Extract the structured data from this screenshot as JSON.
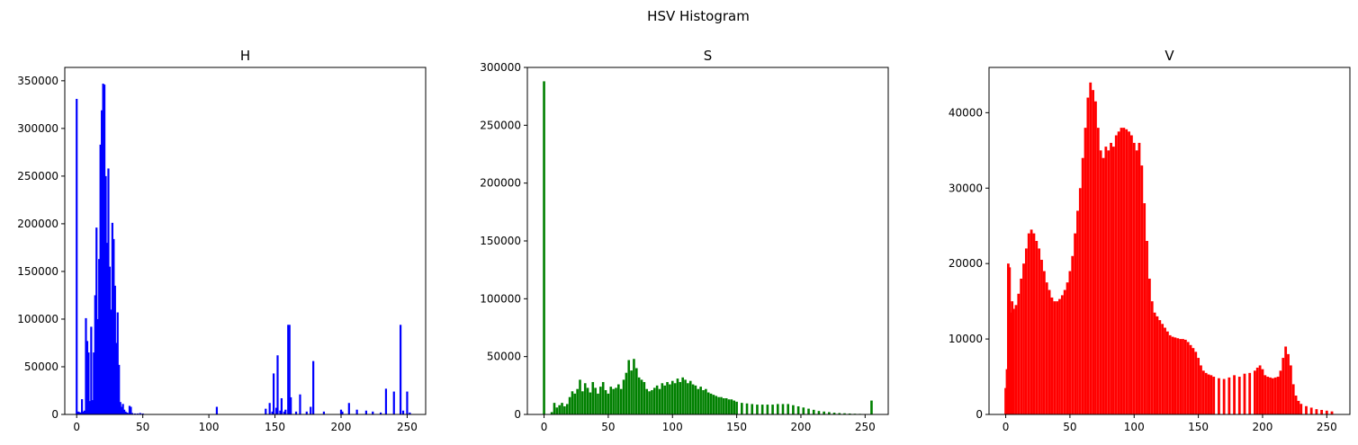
{
  "figure": {
    "suptitle": "HSV Histogram"
  },
  "chart_data": [
    {
      "type": "bar",
      "title": "H",
      "color": "#0000ff",
      "xlim": [
        -9,
        264
      ],
      "ylim": [
        0,
        364000
      ],
      "xticks": [
        0,
        50,
        100,
        150,
        200,
        250
      ],
      "yticks": [
        0,
        50000,
        100000,
        150000,
        200000,
        250000,
        300000,
        350000
      ],
      "points": [
        [
          0,
          331000
        ],
        [
          1,
          3000
        ],
        [
          2,
          2500
        ],
        [
          3,
          2000
        ],
        [
          4,
          16000
        ],
        [
          5,
          3000
        ],
        [
          6,
          4000
        ],
        [
          7,
          101000
        ],
        [
          8,
          77000
        ],
        [
          9,
          65000
        ],
        [
          10,
          14000
        ],
        [
          11,
          92000
        ],
        [
          12,
          15000
        ],
        [
          13,
          65000
        ],
        [
          14,
          125000
        ],
        [
          15,
          196000
        ],
        [
          16,
          100000
        ],
        [
          17,
          163000
        ],
        [
          18,
          283000
        ],
        [
          19,
          319000
        ],
        [
          20,
          347000
        ],
        [
          21,
          346000
        ],
        [
          22,
          250000
        ],
        [
          23,
          180000
        ],
        [
          24,
          258000
        ],
        [
          25,
          155000
        ],
        [
          26,
          110000
        ],
        [
          27,
          201000
        ],
        [
          28,
          184000
        ],
        [
          29,
          135000
        ],
        [
          30,
          75000
        ],
        [
          31,
          107000
        ],
        [
          32,
          52000
        ],
        [
          33,
          13000
        ],
        [
          34,
          8000
        ],
        [
          35,
          11000
        ],
        [
          36,
          5000
        ],
        [
          37,
          3000
        ],
        [
          38,
          2000
        ],
        [
          39,
          1500
        ],
        [
          40,
          9000
        ],
        [
          41,
          8000
        ],
        [
          42,
          1500
        ],
        [
          44,
          1000
        ],
        [
          46,
          1000
        ],
        [
          48,
          1500
        ],
        [
          50,
          1000
        ],
        [
          106,
          8000
        ],
        [
          143,
          6000
        ],
        [
          146,
          12000
        ],
        [
          148,
          3000
        ],
        [
          149,
          43000
        ],
        [
          151,
          7000
        ],
        [
          152,
          62000
        ],
        [
          154,
          4000
        ],
        [
          155,
          17000
        ],
        [
          157,
          3000
        ],
        [
          158,
          5000
        ],
        [
          160,
          94000
        ],
        [
          161,
          94000
        ],
        [
          162,
          18000
        ],
        [
          166,
          3000
        ],
        [
          169,
          21000
        ],
        [
          174,
          3000
        ],
        [
          177,
          8000
        ],
        [
          179,
          56000
        ],
        [
          187,
          3000
        ],
        [
          200,
          5000
        ],
        [
          201,
          3000
        ],
        [
          206,
          12000
        ],
        [
          212,
          5000
        ],
        [
          219,
          4000
        ],
        [
          224,
          3000
        ],
        [
          230,
          2000
        ],
        [
          234,
          27000
        ],
        [
          240,
          24000
        ],
        [
          245,
          94000
        ],
        [
          247,
          4000
        ],
        [
          250,
          24000
        ],
        [
          252,
          2000
        ]
      ]
    },
    {
      "type": "bar",
      "title": "S",
      "color": "#008000",
      "xlim": [
        -13,
        268
      ],
      "ylim": [
        0,
        300000
      ],
      "xticks": [
        0,
        50,
        100,
        150,
        200,
        250
      ],
      "yticks": [
        0,
        50000,
        100000,
        150000,
        200000,
        250000,
        300000
      ],
      "points": [
        [
          0,
          288000
        ],
        [
          2,
          0
        ],
        [
          4,
          0
        ],
        [
          6,
          2000
        ],
        [
          8,
          10000
        ],
        [
          10,
          6000
        ],
        [
          12,
          8000
        ],
        [
          14,
          10000
        ],
        [
          16,
          7000
        ],
        [
          18,
          9000
        ],
        [
          20,
          15000
        ],
        [
          22,
          20000
        ],
        [
          24,
          18000
        ],
        [
          26,
          22000
        ],
        [
          28,
          30000
        ],
        [
          30,
          20000
        ],
        [
          32,
          27000
        ],
        [
          34,
          23000
        ],
        [
          36,
          19000
        ],
        [
          38,
          28000
        ],
        [
          40,
          23000
        ],
        [
          42,
          18000
        ],
        [
          44,
          24000
        ],
        [
          46,
          28000
        ],
        [
          48,
          21000
        ],
        [
          50,
          18000
        ],
        [
          52,
          24000
        ],
        [
          54,
          22000
        ],
        [
          56,
          23000
        ],
        [
          58,
          26000
        ],
        [
          60,
          22000
        ],
        [
          62,
          30000
        ],
        [
          64,
          36000
        ],
        [
          66,
          47000
        ],
        [
          68,
          38000
        ],
        [
          70,
          48000
        ],
        [
          72,
          40000
        ],
        [
          74,
          32000
        ],
        [
          76,
          30000
        ],
        [
          78,
          28000
        ],
        [
          80,
          22000
        ],
        [
          82,
          20000
        ],
        [
          84,
          21000
        ],
        [
          86,
          23000
        ],
        [
          88,
          25000
        ],
        [
          90,
          22000
        ],
        [
          92,
          27000
        ],
        [
          94,
          25000
        ],
        [
          96,
          28000
        ],
        [
          98,
          26000
        ],
        [
          100,
          29000
        ],
        [
          102,
          27000
        ],
        [
          104,
          31000
        ],
        [
          106,
          28000
        ],
        [
          108,
          32000
        ],
        [
          110,
          30000
        ],
        [
          112,
          27000
        ],
        [
          114,
          29000
        ],
        [
          116,
          26000
        ],
        [
          118,
          25000
        ],
        [
          120,
          22000
        ],
        [
          122,
          24000
        ],
        [
          124,
          21000
        ],
        [
          126,
          22000
        ],
        [
          128,
          19000
        ],
        [
          130,
          18000
        ],
        [
          132,
          17000
        ],
        [
          134,
          16000
        ],
        [
          136,
          15000
        ],
        [
          138,
          15000
        ],
        [
          140,
          14000
        ],
        [
          142,
          14000
        ],
        [
          144,
          13000
        ],
        [
          146,
          13000
        ],
        [
          148,
          12000
        ],
        [
          150,
          11000
        ],
        [
          154,
          10000
        ],
        [
          158,
          9500
        ],
        [
          162,
          9000
        ],
        [
          166,
          8500
        ],
        [
          170,
          8500
        ],
        [
          174,
          8500
        ],
        [
          178,
          8500
        ],
        [
          182,
          9000
        ],
        [
          186,
          9000
        ],
        [
          190,
          9000
        ],
        [
          194,
          8000
        ],
        [
          198,
          7000
        ],
        [
          202,
          6000
        ],
        [
          206,
          5000
        ],
        [
          210,
          4000
        ],
        [
          214,
          3000
        ],
        [
          218,
          2500
        ],
        [
          222,
          2000
        ],
        [
          226,
          1500
        ],
        [
          230,
          1200
        ],
        [
          234,
          1000
        ],
        [
          238,
          800
        ],
        [
          242,
          600
        ],
        [
          246,
          500
        ],
        [
          250,
          400
        ],
        [
          255,
          12000
        ]
      ]
    },
    {
      "type": "bar",
      "title": "V",
      "color": "#ff0000",
      "xlim": [
        -13,
        268
      ],
      "ylim": [
        0,
        46000
      ],
      "xticks": [
        0,
        50,
        100,
        150,
        200,
        250
      ],
      "yticks": [
        0,
        10000,
        20000,
        30000,
        40000
      ],
      "points": [
        [
          0,
          3500
        ],
        [
          1,
          6000
        ],
        [
          2,
          20000
        ],
        [
          3,
          19500
        ],
        [
          4,
          13500
        ],
        [
          5,
          15000
        ],
        [
          6,
          14000
        ],
        [
          8,
          14500
        ],
        [
          10,
          16000
        ],
        [
          12,
          18000
        ],
        [
          14,
          20000
        ],
        [
          16,
          22000
        ],
        [
          18,
          24000
        ],
        [
          20,
          24500
        ],
        [
          22,
          24000
        ],
        [
          24,
          23000
        ],
        [
          26,
          22000
        ],
        [
          28,
          20500
        ],
        [
          30,
          19000
        ],
        [
          32,
          17500
        ],
        [
          34,
          16500
        ],
        [
          36,
          15500
        ],
        [
          38,
          15000
        ],
        [
          40,
          15000
        ],
        [
          42,
          15300
        ],
        [
          44,
          15800
        ],
        [
          46,
          16500
        ],
        [
          48,
          17500
        ],
        [
          50,
          19000
        ],
        [
          52,
          21000
        ],
        [
          54,
          24000
        ],
        [
          56,
          27000
        ],
        [
          58,
          30000
        ],
        [
          60,
          34000
        ],
        [
          62,
          38000
        ],
        [
          64,
          42000
        ],
        [
          66,
          44000
        ],
        [
          68,
          43000
        ],
        [
          70,
          41500
        ],
        [
          72,
          38000
        ],
        [
          74,
          35000
        ],
        [
          76,
          34000
        ],
        [
          78,
          35500
        ],
        [
          80,
          35000
        ],
        [
          82,
          36000
        ],
        [
          84,
          35500
        ],
        [
          86,
          37000
        ],
        [
          88,
          37500
        ],
        [
          90,
          38000
        ],
        [
          92,
          38000
        ],
        [
          94,
          37800
        ],
        [
          96,
          37500
        ],
        [
          98,
          37000
        ],
        [
          100,
          36000
        ],
        [
          102,
          35000
        ],
        [
          104,
          36000
        ],
        [
          106,
          33000
        ],
        [
          108,
          28000
        ],
        [
          110,
          23000
        ],
        [
          112,
          18000
        ],
        [
          114,
          15000
        ],
        [
          116,
          13500
        ],
        [
          118,
          13000
        ],
        [
          120,
          12500
        ],
        [
          122,
          12000
        ],
        [
          124,
          11500
        ],
        [
          126,
          11000
        ],
        [
          128,
          10500
        ],
        [
          130,
          10300
        ],
        [
          132,
          10200
        ],
        [
          134,
          10100
        ],
        [
          136,
          10000
        ],
        [
          138,
          10000
        ],
        [
          140,
          9900
        ],
        [
          142,
          9600
        ],
        [
          144,
          9200
        ],
        [
          146,
          8800
        ],
        [
          148,
          8300
        ],
        [
          150,
          7500
        ],
        [
          152,
          6500
        ],
        [
          154,
          5800
        ],
        [
          156,
          5500
        ],
        [
          158,
          5300
        ],
        [
          160,
          5200
        ],
        [
          162,
          5000
        ],
        [
          166,
          4800
        ],
        [
          170,
          4700
        ],
        [
          174,
          4900
        ],
        [
          178,
          5200
        ],
        [
          182,
          5000
        ],
        [
          186,
          5400
        ],
        [
          190,
          5500
        ],
        [
          194,
          5800
        ],
        [
          196,
          6200
        ],
        [
          198,
          6500
        ],
        [
          200,
          6000
        ],
        [
          202,
          5200
        ],
        [
          204,
          5000
        ],
        [
          206,
          4900
        ],
        [
          208,
          4800
        ],
        [
          210,
          4900
        ],
        [
          212,
          5000
        ],
        [
          214,
          5800
        ],
        [
          216,
          7500
        ],
        [
          218,
          9000
        ],
        [
          220,
          8000
        ],
        [
          222,
          6500
        ],
        [
          224,
          4000
        ],
        [
          226,
          2500
        ],
        [
          228,
          1800
        ],
        [
          230,
          1400
        ],
        [
          234,
          1100
        ],
        [
          238,
          900
        ],
        [
          242,
          700
        ],
        [
          246,
          600
        ],
        [
          250,
          500
        ],
        [
          254,
          400
        ]
      ]
    }
  ]
}
